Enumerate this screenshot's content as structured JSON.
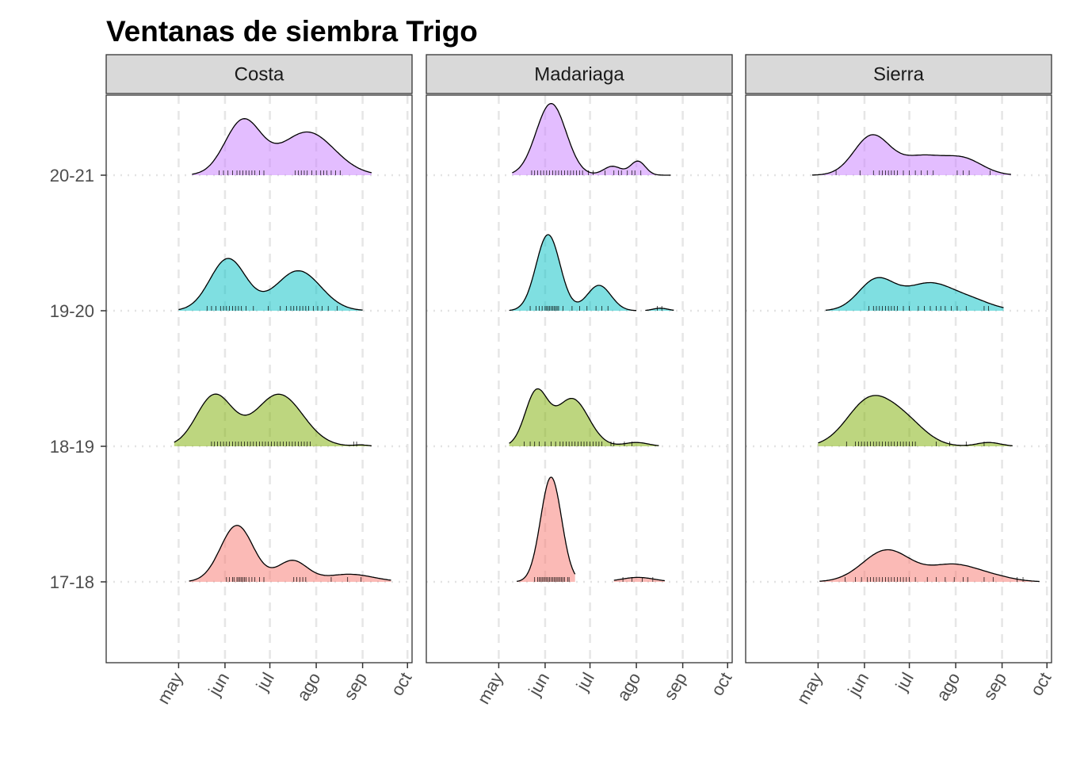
{
  "chart_data": {
    "type": "ridgeline",
    "title": "Ventanas de siembra Trigo",
    "xlabel": "",
    "ylabel": "",
    "x_ticks": [
      "may",
      "jun",
      "jul",
      "ago",
      "sep",
      "oct"
    ],
    "x_tick_days": [
      121,
      152,
      182,
      213,
      244,
      274
    ],
    "xlim_days": [
      98,
      276
    ],
    "y_categories": [
      "17-18",
      "18-19",
      "19-20",
      "20-21"
    ],
    "grid": true,
    "legend": "none",
    "colors": {
      "17-18": "#F8766D",
      "18-19": "#7CAE00",
      "19-20": "#00BFC4",
      "20-21": "#C77CFF"
    },
    "panels": [
      {
        "strip_label": "Costa",
        "series": [
          {
            "name": "17-18",
            "range": [
              128,
              263
            ],
            "modes": [
              [
                160,
                11,
                0.89
              ],
              [
                197,
                10,
                0.33
              ],
              [
                235,
                16,
                0.12
              ]
            ],
            "rug": [
              153,
              155,
              157,
              158,
              160,
              161,
              162,
              163,
              164,
              165,
              166,
              168,
              170,
              172,
              175,
              178,
              198,
              200,
              202,
              204,
              206,
              223,
              234,
              243
            ]
          },
          {
            "name": "18-19",
            "range": [
              118,
              250
            ],
            "modes": [
              [
                145,
                12,
                0.8
              ],
              [
                188,
                16,
                0.82
              ],
              [
                243,
                5,
                0.02
              ]
            ],
            "rug": [
              143,
              145,
              147,
              149,
              151,
              153,
              155,
              157,
              159,
              161,
              163,
              165,
              167,
              169,
              171,
              173,
              175,
              177,
              179,
              181,
              183,
              185,
              187,
              189,
              191,
              193,
              195,
              197,
              199,
              201,
              203,
              205,
              207,
              209,
              238,
              240
            ]
          },
          {
            "name": "19-20",
            "range": [
              121,
              244
            ],
            "modes": [
              [
                154,
                12,
                0.82
              ],
              [
                201,
                15,
                0.63
              ]
            ],
            "rug": [
              140,
              143,
              146,
              149,
              151,
              153,
              155,
              157,
              159,
              161,
              163,
              166,
              171,
              181,
              189,
              193,
              196,
              198,
              200,
              202,
              204,
              206,
              208,
              211,
              214,
              217,
              221,
              227
            ]
          },
          {
            "name": "20-21",
            "range": [
              130,
              250
            ],
            "modes": [
              [
                164,
                12,
                0.85
              ],
              [
                207,
                18,
                0.68
              ]
            ],
            "rug": [
              148,
              151,
              154,
              157,
              160,
              162,
              164,
              166,
              168,
              170,
              172,
              175,
              178,
              199,
              201,
              203,
              205,
              207,
              210,
              213,
              216,
              218,
              220,
              223,
              226,
              229
            ]
          }
        ]
      },
      {
        "strip_label": "Madariaga",
        "series": [
          {
            "name": "17-18",
            "range": [
              133,
              172
            ],
            "modes": [
              [
                156,
                7,
                1.65
              ]
            ],
            "rug": [
              145,
              147,
              148,
              149,
              150,
              151,
              152,
              153,
              154,
              155,
              156,
              157,
              158,
              159,
              160,
              161,
              162,
              163,
              164,
              165,
              167,
              168
            ]
          },
          {
            "name": "17-18",
            "range": [
              198,
              232
            ],
            "modes": [
              [
                214,
                11,
                0.07
              ]
            ],
            "rug": [
              204,
              210,
              217,
              224
            ]
          },
          {
            "name": "18-19",
            "range": [
              128,
              228
            ],
            "modes": [
              [
                146,
                7.5,
                0.83
              ],
              [
                170,
                11,
                0.75
              ],
              [
                213,
                8,
                0.06
              ]
            ],
            "rug": [
              138,
              142,
              145,
              148,
              152,
              156,
              159,
              162,
              164,
              166,
              168,
              170,
              172,
              174,
              176,
              178,
              180,
              182,
              184,
              186,
              188,
              190,
              196,
              198,
              205,
              210
            ]
          },
          {
            "name": "19-20",
            "range": [
              128,
              213
            ],
            "modes": [
              [
                154,
                8,
                1.2
              ],
              [
                188,
                8,
                0.4
              ]
            ],
            "rug": [
              142,
              146,
              148,
              150,
              152,
              153,
              154,
              155,
              156,
              157,
              158,
              159,
              160,
              161,
              164,
              170,
              175,
              180,
              186,
              190,
              194
            ]
          },
          {
            "name": "19-20",
            "range": [
              219,
              238
            ],
            "modes": [
              [
                229,
                5,
                0.04
              ]
            ],
            "rug": [
              227,
              230
            ]
          },
          {
            "name": "20-21",
            "range": [
              130,
              236
            ],
            "modes": [
              [
                156,
                10,
                1.13
              ],
              [
                197,
                6,
                0.14
              ],
              [
                214,
                5,
                0.22
              ]
            ],
            "rug": [
              143,
              145,
              147,
              149,
              151,
              153,
              155,
              157,
              159,
              161,
              163,
              165,
              167,
              169,
              171,
              173,
              175,
              177,
              181,
              184,
              192,
              198,
              201,
              203,
              207,
              210,
              212,
              216
            ]
          }
        ]
      },
      {
        "strip_label": "Sierra",
        "series": [
          {
            "name": "17-18",
            "range": [
              122,
              269
            ],
            "modes": [
              [
                167,
                16,
                0.5
              ],
              [
                211,
                16,
                0.26
              ],
              [
                238,
                14,
                0.07
              ]
            ],
            "rug": [
              139,
              146,
              150,
              154,
              156,
              158,
              160,
              162,
              164,
              166,
              168,
              170,
              172,
              174,
              176,
              178,
              180,
              182,
              186,
              194,
              200,
              206,
              212,
              218,
              221,
              232,
              238,
              254,
              258
            ]
          },
          {
            "name": "18-19",
            "range": [
              121,
              251
            ],
            "modes": [
              [
                155,
                15,
                0.7
              ],
              [
                179,
                14,
                0.35
              ],
              [
                235,
                8,
                0.06
              ]
            ],
            "rug": [
              140,
              146,
              148,
              150,
              152,
              154,
              156,
              158,
              160,
              162,
              164,
              166,
              168,
              170,
              172,
              174,
              176,
              178,
              180,
              182,
              184,
              186,
              200,
              209,
              220,
              232
            ]
          },
          {
            "name": "19-20",
            "range": [
              126,
              245
            ],
            "modes": [
              [
                160,
                12,
                0.48
              ],
              [
                195,
                16,
                0.42
              ],
              [
                224,
                14,
                0.14
              ]
            ],
            "rug": [
              155,
              158,
              160,
              162,
              164,
              166,
              168,
              170,
              172,
              174,
              178,
              182,
              188,
              192,
              196,
              200,
              203,
              206,
              210,
              214,
              220,
              232,
              235
            ]
          },
          {
            "name": "20-21",
            "range": [
              117,
              250
            ],
            "modes": [
              [
                157,
                12,
                0.62
              ],
              [
                190,
                14,
                0.28
              ],
              [
                218,
                13,
                0.25
              ]
            ],
            "rug": [
              133,
              149,
              158,
              162,
              164,
              166,
              168,
              170,
              172,
              174,
              178,
              182,
              186,
              190,
              194,
              198,
              214,
              218,
              222,
              236
            ]
          }
        ]
      }
    ]
  }
}
